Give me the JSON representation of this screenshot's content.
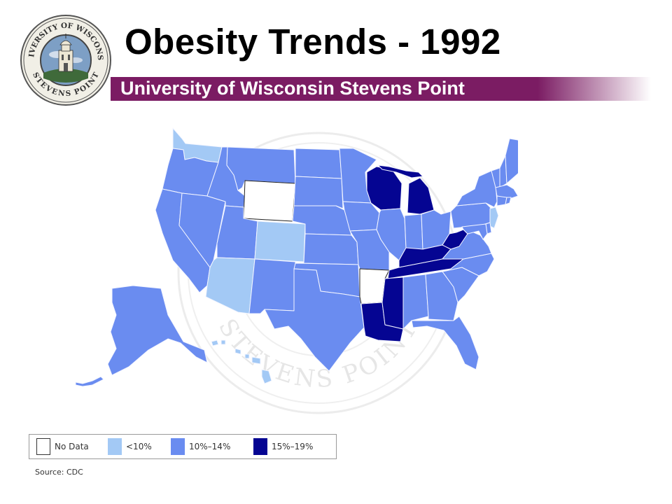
{
  "title": "Obesity Trends - 1992",
  "subtitle": "University of Wisconsin Stevens Point",
  "logo": {
    "top_text": "UNIVERSITY OF WISCONSIN",
    "bottom_text": "STEVENS POINT"
  },
  "watermark": {
    "text": "STEVENS POINT"
  },
  "colors": {
    "banner": "#7b1c63",
    "no_data": "#ffffff",
    "lt10": "#a3c9f5",
    "p10_14": "#6a8cf0",
    "p15_19": "#050592"
  },
  "legend": {
    "items": [
      {
        "label": "No Data",
        "category": "no_data"
      },
      {
        "label": "<10%",
        "category": "lt10"
      },
      {
        "label": "10%–14%",
        "category": "p10_14"
      },
      {
        "label": "15%–19%",
        "category": "p15_19"
      }
    ]
  },
  "states": {
    "WA": "lt10",
    "OR": "p10_14",
    "CA": "p10_14",
    "NV": "p10_14",
    "ID": "p10_14",
    "MT": "p10_14",
    "WY": "no_data",
    "UT": "p10_14",
    "CO": "lt10",
    "AZ": "lt10",
    "NM": "p10_14",
    "ND": "p10_14",
    "SD": "p10_14",
    "NE": "p10_14",
    "KS": "p10_14",
    "OK": "p10_14",
    "TX": "p10_14",
    "MN": "p10_14",
    "IA": "p10_14",
    "MO": "p10_14",
    "AR": "no_data",
    "LA": "p15_19",
    "WI": "p15_19",
    "IL": "p10_14",
    "MI": "p15_19",
    "IN": "p10_14",
    "OH": "p10_14",
    "KY": "p15_19",
    "TN": "p15_19",
    "MS": "p15_19",
    "AL": "p10_14",
    "GA": "p10_14",
    "FL": "p10_14",
    "SC": "p10_14",
    "NC": "p10_14",
    "VA": "p10_14",
    "WV": "p15_19",
    "PA": "p10_14",
    "NY": "p10_14",
    "VT": "p10_14",
    "NH": "p10_14",
    "ME": "p10_14",
    "MA": "p10_14",
    "RI": "p10_14",
    "CT": "p10_14",
    "NJ": "lt10",
    "DE": "p10_14",
    "MD": "p10_14",
    "AK": "p10_14",
    "HI": "lt10"
  },
  "source": "Source: CDC"
}
